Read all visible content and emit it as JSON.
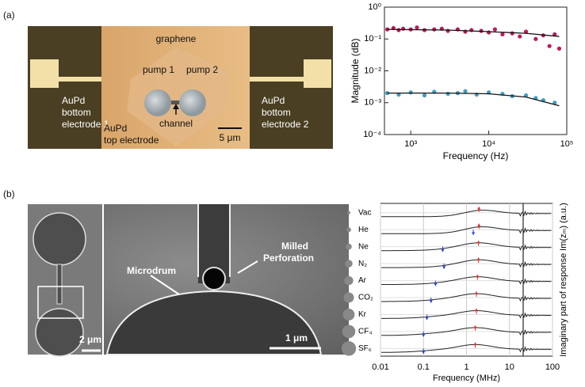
{
  "figure": {
    "panel_a": {
      "label": "(a)",
      "image": {
        "graphene": "graphene",
        "pump1": "pump 1",
        "pump2": "pump 2",
        "channel": "channel",
        "left_electrode": [
          "AuPd",
          "bottom",
          "electrode 1"
        ],
        "top_electrode": [
          "AuPd",
          "top electrode"
        ],
        "right_electrode": [
          "AuPd",
          "bottom",
          "electrode 2"
        ],
        "scale": "5 μm"
      }
    },
    "panel_b": {
      "label": "(b)",
      "image": {
        "microdrum": "Microdrum",
        "perforation": [
          "Milled",
          "Perforation"
        ],
        "scale_left": "2 μm",
        "scale_right": "1 μm"
      }
    }
  },
  "chart_data": [
    {
      "type": "scatter",
      "xlabel": "Frequency (Hz)",
      "ylabel": "Magnitude (dB)",
      "xlog": true,
      "ylog": true,
      "xlim": [
        460,
        100000
      ],
      "ylim": [
        0.0001,
        1
      ],
      "xticks": [
        {
          "value": 1000,
          "label": "10³"
        },
        {
          "value": 10000,
          "label": "10⁴"
        },
        {
          "value": 100000,
          "label": "10⁵"
        }
      ],
      "yticks": [
        {
          "value": 0.0001,
          "label": "10⁻⁴"
        },
        {
          "value": 0.001,
          "label": "10⁻³"
        },
        {
          "value": 0.01,
          "label": "10⁻²"
        },
        {
          "value": 0.1,
          "label": "10⁻¹"
        },
        {
          "value": 1,
          "label": "10⁰"
        }
      ],
      "series": [
        {
          "mode": "markers",
          "color": "#c2185b",
          "x": [
            500,
            600,
            700,
            800,
            1000,
            1200,
            1500,
            2000,
            2500,
            3000,
            4000,
            5000,
            6000,
            8000,
            10000,
            12000,
            15000,
            20000,
            25000,
            30000,
            40000,
            50000,
            60000,
            70000,
            80000
          ],
          "values": [
            0.2,
            0.22,
            0.19,
            0.21,
            0.2,
            0.23,
            0.19,
            0.2,
            0.21,
            0.18,
            0.2,
            0.17,
            0.19,
            0.18,
            0.16,
            0.2,
            0.14,
            0.15,
            0.12,
            0.17,
            0.1,
            0.13,
            0.06,
            0.14,
            0.05
          ]
        },
        {
          "mode": "line",
          "color": "#111111",
          "x": [
            500,
            3000,
            10000,
            30000,
            80000
          ],
          "values": [
            0.2,
            0.19,
            0.17,
            0.15,
            0.12
          ]
        },
        {
          "mode": "markers",
          "color": "#3a9fc4",
          "x": [
            500,
            700,
            1000,
            1500,
            2000,
            3000,
            4000,
            5000,
            7000,
            10000,
            15000,
            20000,
            30000,
            40000,
            50000,
            70000
          ],
          "values": [
            0.002,
            0.0018,
            0.0021,
            0.0017,
            0.0022,
            0.0019,
            0.002,
            0.0023,
            0.0018,
            0.0021,
            0.0019,
            0.0016,
            0.0017,
            0.0014,
            0.0012,
            0.001
          ]
        },
        {
          "mode": "line",
          "color": "#111111",
          "x": [
            500,
            3000,
            10000,
            30000,
            80000
          ],
          "values": [
            0.002,
            0.002,
            0.0019,
            0.0015,
            0.0008
          ]
        }
      ]
    },
    {
      "type": "spectra",
      "xlabel": "Frequency (MHz)",
      "ylabel": "Imaginary part of  response Im(zₘ) (a.u.)",
      "xlog": true,
      "grid": true,
      "xlim": [
        0.01,
        100
      ],
      "xticks": [
        0.01,
        0.1,
        1,
        10,
        100
      ],
      "series": [
        {
          "name": "Vac",
          "peak": 1.95,
          "knee": null
        },
        {
          "name": "He",
          "peak": 1.95,
          "knee": 1.44
        },
        {
          "name": "Ne",
          "peak": 1.9,
          "knee": 0.28
        },
        {
          "name": "N₂",
          "peak": 1.9,
          "knee": 0.3
        },
        {
          "name": "Ar",
          "peak": 1.8,
          "knee": 0.19
        },
        {
          "name": "CO₂",
          "peak": 1.7,
          "knee": 0.15
        },
        {
          "name": "Kr",
          "peak": 1.7,
          "knee": 0.12
        },
        {
          "name": "CF₄",
          "peak": 1.6,
          "knee": 0.1
        },
        {
          "name": "SF₆",
          "peak": 1.6,
          "knee": 0.1
        }
      ]
    }
  ]
}
